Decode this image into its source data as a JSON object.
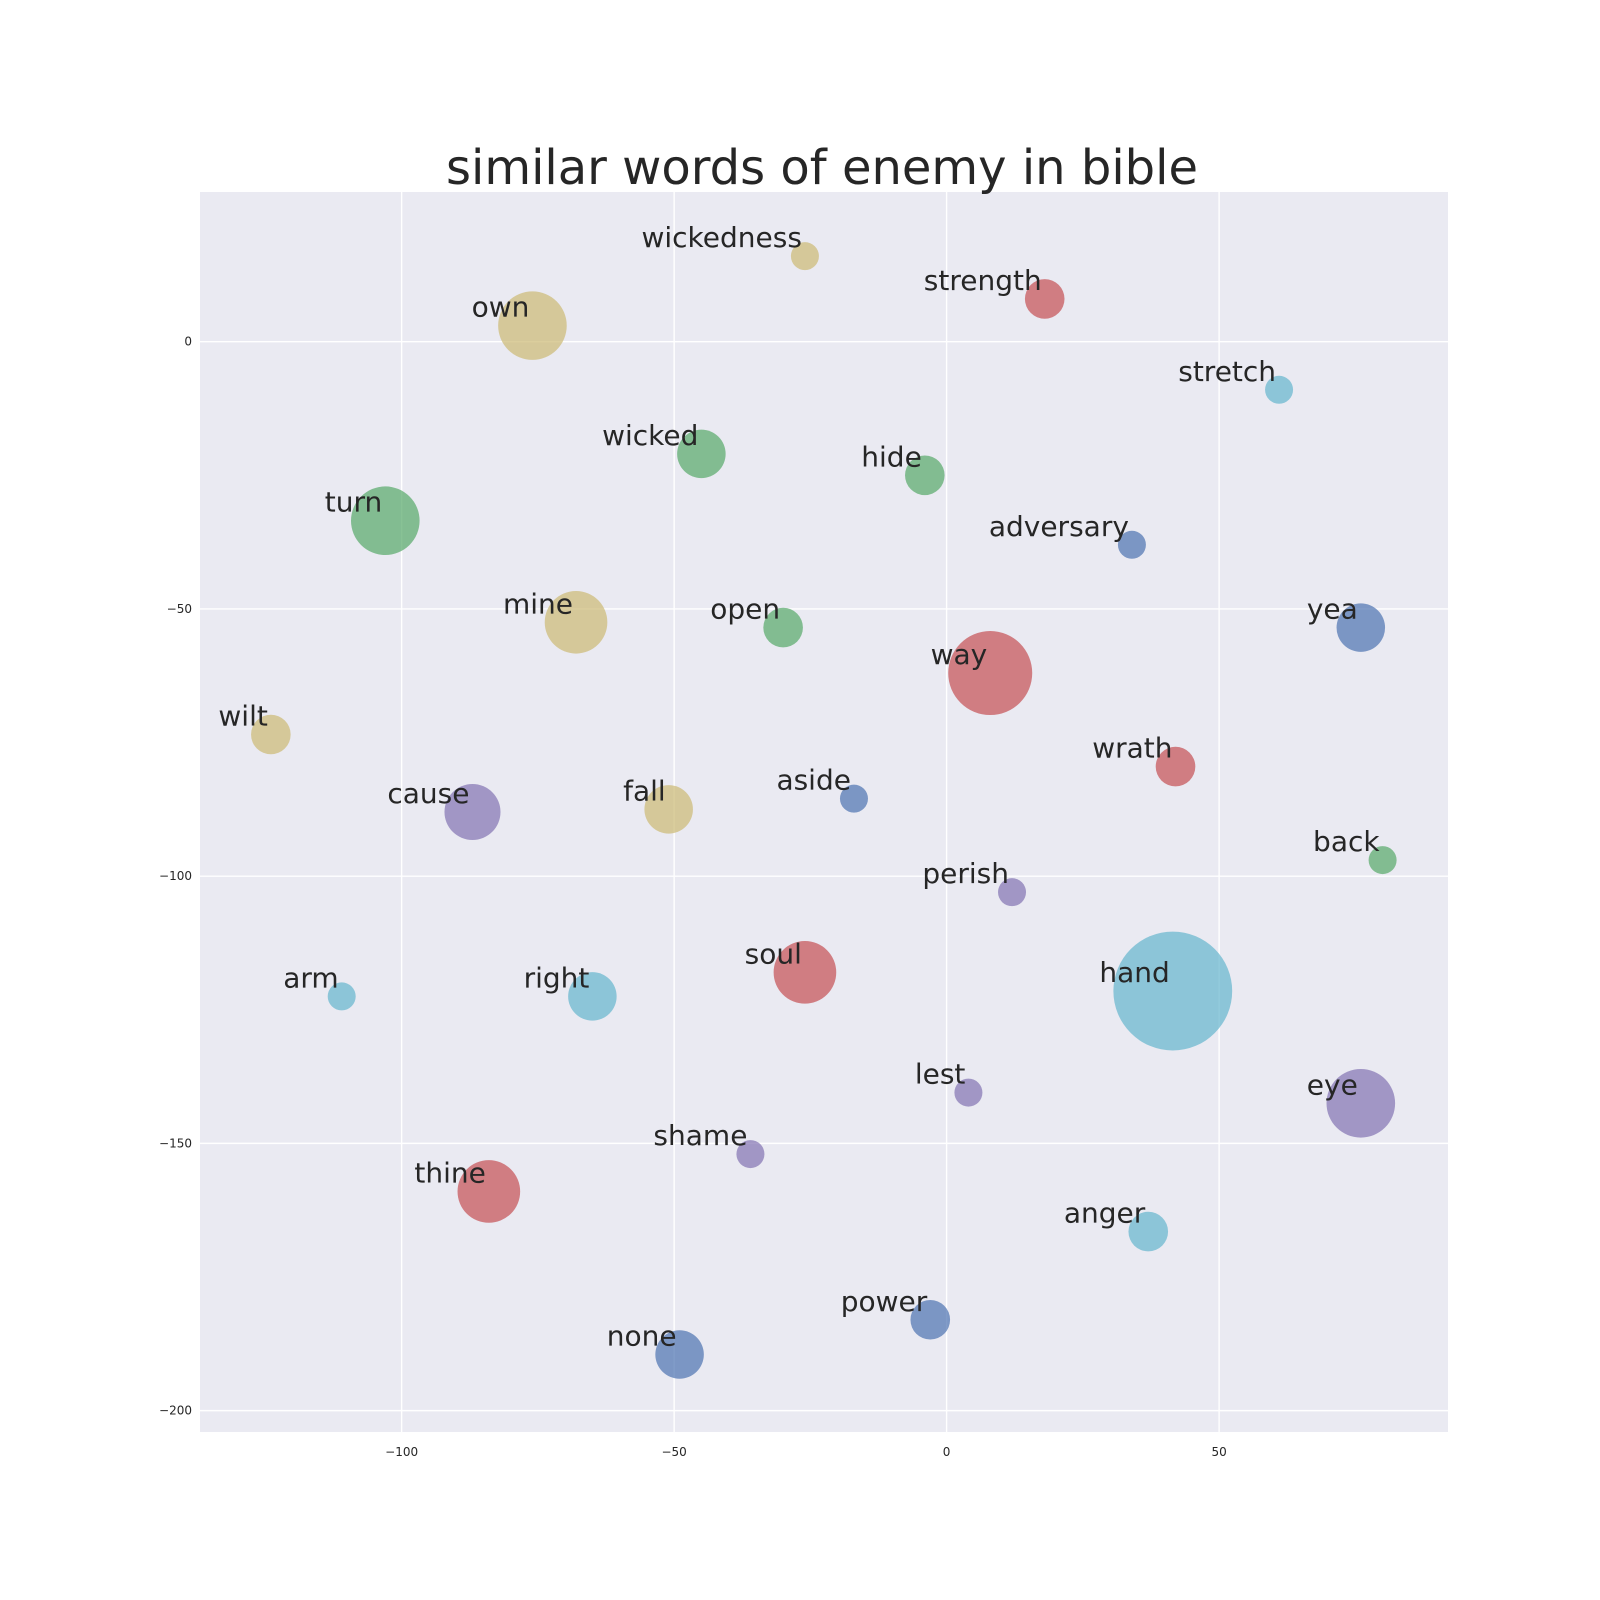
{
  "chart_data": {
    "type": "scatter",
    "title": "similar words of enemy in bible",
    "xlabel": "",
    "ylabel": "",
    "xlim": [
      -137,
      92
    ],
    "ylim": [
      -204,
      28
    ],
    "xticks": [
      -100,
      -50,
      0,
      50
    ],
    "yticks": [
      0,
      -50,
      -100,
      -150,
      -200
    ],
    "xtick_labels": [
      "−100",
      "−50",
      "0",
      "50"
    ],
    "ytick_labels": [
      "0",
      "−50",
      "−100",
      "−150",
      "−200"
    ],
    "grid": true,
    "legend": "none",
    "colors": {
      "blue": "#4c72b0",
      "green": "#55a868",
      "red": "#c44e52",
      "purple": "#8172b2",
      "sand": "#ccb974",
      "cyan": "#64b5cd",
      "plot_background": "#eaeaf2",
      "grid": "#ffffff"
    },
    "points": [
      {
        "label": "wickedness",
        "x": -26,
        "y": 16,
        "size": 1,
        "color": "sand"
      },
      {
        "label": "strength",
        "x": 18,
        "y": 8,
        "size": 2,
        "color": "red"
      },
      {
        "label": "own",
        "x": -76,
        "y": 3,
        "size": 6,
        "color": "sand"
      },
      {
        "label": "stretch",
        "x": 61,
        "y": -9,
        "size": 1,
        "color": "cyan"
      },
      {
        "label": "wicked",
        "x": -45,
        "y": -21,
        "size": 3,
        "color": "green"
      },
      {
        "label": "hide",
        "x": -4,
        "y": -25,
        "size": 2,
        "color": "green"
      },
      {
        "label": "turn",
        "x": -103,
        "y": -33.5,
        "size": 6,
        "color": "green"
      },
      {
        "label": "adversary",
        "x": 34,
        "y": -38,
        "size": 1,
        "color": "blue"
      },
      {
        "label": "mine",
        "x": -68,
        "y": -52.5,
        "size": 5,
        "color": "sand"
      },
      {
        "label": "open",
        "x": -30,
        "y": -53.5,
        "size": 2,
        "color": "green"
      },
      {
        "label": "yea",
        "x": 76,
        "y": -53.5,
        "size": 3,
        "color": "blue"
      },
      {
        "label": "way",
        "x": 8,
        "y": -62,
        "size": 9,
        "color": "red"
      },
      {
        "label": "wilt",
        "x": -124,
        "y": -73.5,
        "size": 2,
        "color": "sand"
      },
      {
        "label": "wrath",
        "x": 42,
        "y": -79.5,
        "size": 2,
        "color": "red"
      },
      {
        "label": "cause",
        "x": -87,
        "y": -88,
        "size": 4,
        "color": "purple"
      },
      {
        "label": "fall",
        "x": -51,
        "y": -87.5,
        "size": 3,
        "color": "sand"
      },
      {
        "label": "aside",
        "x": -17,
        "y": -85.5,
        "size": 1,
        "color": "blue"
      },
      {
        "label": "back",
        "x": 80,
        "y": -97,
        "size": 1,
        "color": "green"
      },
      {
        "label": "perish",
        "x": 12,
        "y": -103,
        "size": 1,
        "color": "purple"
      },
      {
        "label": "soul",
        "x": -26,
        "y": -118,
        "size": 5,
        "color": "red"
      },
      {
        "label": "hand",
        "x": 41.5,
        "y": -121.5,
        "size": 18,
        "color": "cyan"
      },
      {
        "label": "arm",
        "x": -111,
        "y": -122.5,
        "size": 1,
        "color": "cyan"
      },
      {
        "label": "right",
        "x": -65,
        "y": -122.5,
        "size": 3,
        "color": "cyan"
      },
      {
        "label": "lest",
        "x": 4,
        "y": -140.5,
        "size": 1,
        "color": "purple"
      },
      {
        "label": "eye",
        "x": 76,
        "y": -142.5,
        "size": 6,
        "color": "purple"
      },
      {
        "label": "shame",
        "x": -36,
        "y": -152,
        "size": 1,
        "color": "purple"
      },
      {
        "label": "thine",
        "x": -84,
        "y": -159,
        "size": 5,
        "color": "red"
      },
      {
        "label": "anger",
        "x": 37,
        "y": -166.5,
        "size": 2,
        "color": "cyan"
      },
      {
        "label": "power",
        "x": -3,
        "y": -183,
        "size": 2,
        "color": "blue"
      },
      {
        "label": "none",
        "x": -49,
        "y": -189.5,
        "size": 3,
        "color": "blue"
      }
    ]
  }
}
